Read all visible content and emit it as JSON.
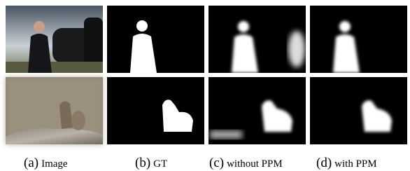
{
  "captions": [
    {
      "label": "(a)",
      "text": "Image"
    },
    {
      "label": "(b)",
      "text": "GT"
    },
    {
      "label": "(c)",
      "text": "without PPM"
    },
    {
      "label": "(d)",
      "text": "with PPM"
    }
  ]
}
